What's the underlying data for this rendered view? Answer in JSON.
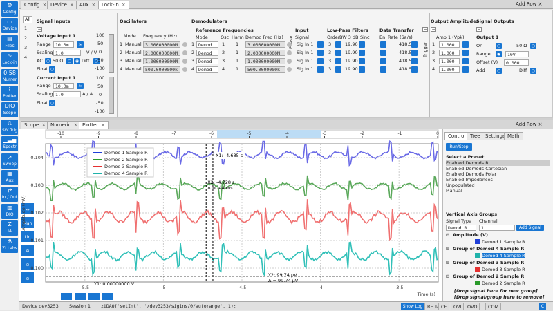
{
  "nav": [
    {
      "label": "Config",
      "icon": "⚙"
    },
    {
      "label": "Device",
      "icon": "▭"
    },
    {
      "label": "Files",
      "icon": "▤"
    },
    {
      "label": "Lock-in",
      "icon": "∿"
    },
    {
      "label": "Numer",
      "icon": "0.58"
    },
    {
      "label": "Plotter",
      "icon": "⌇"
    },
    {
      "label": "Scope",
      "icon": "DIO"
    },
    {
      "label": "SW Trig",
      "icon": "⎍"
    },
    {
      "label": "Spectr",
      "icon": "▁▃▅"
    },
    {
      "label": "Sweep",
      "icon": "↗"
    },
    {
      "label": "Aux",
      "icon": "▦"
    },
    {
      "label": "In / Out",
      "icon": "⇄"
    },
    {
      "label": "DIO",
      "icon": "▥"
    },
    {
      "label": "IA",
      "icon": "Z"
    },
    {
      "label": "ZI Labs",
      "icon": "⚗"
    }
  ],
  "top_tabs": [
    "Config",
    "Device",
    "Aux",
    "Lock-in"
  ],
  "add_row": "Add Row",
  "side_numbers": [
    "All",
    "1",
    "2",
    "3",
    "4"
  ],
  "signal_inputs": {
    "title": "Signal Inputs",
    "v_title": "Voltage Input 1",
    "range_label": "Range",
    "range_value": "10.0m",
    "scaling_label": "Scaling",
    "scaling_value": "1.0",
    "v_unit": "V / V",
    "ac": "AC",
    "ohm": "50 Ω",
    "diff": "Diff",
    "float": "Float",
    "c_title": "Current Input 1",
    "c_range_value": "10.0m",
    "c_scaling_value": "1.0",
    "a_unit": "A / A",
    "bar1": [
      "100",
      "50",
      "0",
      "-50",
      "-100"
    ],
    "bar2": [
      "100",
      "50",
      "0",
      "-50",
      "-100"
    ]
  },
  "oscillators": {
    "title": "Oscillators",
    "mode_h": "Mode",
    "freq_h": "Frequency (Hz)",
    "rows": [
      [
        "1",
        "Manual",
        "3.000000000M"
      ],
      [
        "2",
        "Manual",
        "2.000000000M"
      ],
      [
        "3",
        "Manual",
        "1.000000000M"
      ],
      [
        "4",
        "Manual",
        "500.0000000k"
      ]
    ]
  },
  "demods": {
    "title": "Demodulators",
    "ref_h": "Reference Frequencies",
    "mode_h": "Mode",
    "osc_h": "Osc",
    "harm_h": "Harm",
    "freq_h": "Demod Freq (Hz)",
    "rows": [
      [
        "1",
        "Demod",
        "1",
        "1",
        "3.000000000M"
      ],
      [
        "2",
        "Demod",
        "2",
        "1",
        "2.000000000M"
      ],
      [
        "3",
        "Demod",
        "3",
        "1",
        "1.000000000M"
      ],
      [
        "4",
        "Demod",
        "4",
        "1",
        "500.0000000k"
      ]
    ],
    "phase": "Phase",
    "input_h": "Input",
    "signal_h": "Signal",
    "input_rows": [
      "Sig In 1",
      "Sig In 1",
      "Sig In 1",
      "Sig In 1"
    ],
    "lp_h": "Low-Pass Filters",
    "order_h": "Order",
    "bw_h": "BW 3 dB",
    "sinc_h": "Sinc",
    "lp_rows": [
      [
        "3",
        "19.90"
      ],
      [
        "3",
        "19.90"
      ],
      [
        "3",
        "19.90"
      ],
      [
        "3",
        "19.90"
      ]
    ],
    "dt_h": "Data Transfer",
    "en_h": "En",
    "rate_h": "Rate (Sa/s)",
    "rates": [
      "418.5",
      "418.5",
      "418.5",
      "418.5"
    ],
    "trigger": "Trigger"
  },
  "out_amp": {
    "title": "Output Amplitudes",
    "amp_h": "Amp 1 (Vpk)",
    "rows": [
      [
        "1",
        "1.000"
      ],
      [
        "2",
        "1.000"
      ],
      [
        "3",
        "1.000"
      ],
      [
        "4",
        "1.000"
      ]
    ]
  },
  "sig_out": {
    "title": "Signal Outputs",
    "out1": "Output 1",
    "on": "On",
    "ohm": "50 Ω",
    "range": "Range",
    "range_v": "10V",
    "offset": "Offset (V)",
    "offset_v": "0.000",
    "add": "Add",
    "diff": "Diff"
  },
  "bottom_tabs": [
    "Scope",
    "Numeric",
    "Plotter"
  ],
  "right_tabs": [
    "Control",
    "Tree",
    "Settings",
    "Math"
  ],
  "run_stop": "Run/Stop",
  "preset_title": "Select a Preset",
  "presets": [
    "Enabled Demods R",
    "Enabled Demods Cartesian",
    "Enabled Demods Polar",
    "Enabled Impedances",
    "Unpopulated",
    "Manual"
  ],
  "vag_title": "Vertical Axis Groups",
  "signal_type": "Signal Type",
  "channel": "Channel",
  "sel_type": "Demod R",
  "sel_chan": "1",
  "add_signal": "Add Signal",
  "groups": [
    {
      "name": "Amplitude (V)",
      "item": "Demod 1 Sample R",
      "color": "#1f3fd8"
    },
    {
      "name": "Group of Demod 4 Sample R",
      "item": "Demod 4 Sample R",
      "color": "#20b2aa"
    },
    {
      "name": "Group of Demod 3 Sample R",
      "item": "Demod 3 Sample R",
      "color": "#e53030"
    },
    {
      "name": "Group of Demod 2 Sample R",
      "item": "Demod 2 Sample R",
      "color": "#2a9a2a"
    }
  ],
  "drop1": "[Drop signal here for new group]",
  "drop2": "[Drop signal/group here to remove]",
  "status": {
    "device": "Device dev3253",
    "session": "Session 1",
    "cmd": "ziDAQ('setInt', '/dev3253/sigins/0/autorange', 1);",
    "showlog": "Show Log",
    "inds": [
      "REC",
      "IA",
      "CF",
      "OVI",
      "OVO",
      "COM"
    ],
    "c": "C"
  },
  "chart_data": {
    "type": "line",
    "ylabel": "Amplitude (mV)",
    "xlabel": "Time (s)",
    "x_top_ticks": [
      "-10",
      "-9",
      "-8",
      "-7",
      "-6",
      "-5",
      "-4",
      "-3",
      "-2",
      "-1",
      "0"
    ],
    "x_bottom_ticks": [
      "-5.5",
      "-5",
      "-4.5",
      "-4",
      "-3.5"
    ],
    "y_ticks": [
      "0.104",
      "0.103",
      "0.102",
      "0.101",
      "0.100"
    ],
    "xlim": [
      -5.75,
      -3.25
    ],
    "ylim": [
      0.0995,
      0.1045
    ],
    "series": [
      {
        "name": "Demod 1 Sample R",
        "color": "#6a6ae6",
        "base": 0.1041,
        "amp": 0.0003
      },
      {
        "name": "Demod 2 Sample R",
        "color": "#5aa85a",
        "base": 0.10296,
        "amp": 0.0003
      },
      {
        "name": "Demod 3 Sample R",
        "color": "#f07070",
        "base": 0.10185,
        "amp": 0.0005
      },
      {
        "name": "Demod 4 Sample R",
        "color": "#30c0b8",
        "base": 0.10045,
        "amp": 0.0004
      }
    ],
    "cursors": {
      "x1": "X1: -4.685 s",
      "x2": "X2: -4.728 s",
      "dx": "Δ = -44 ms",
      "y1": "Y1: 0.00000000 V",
      "y2": "Y2: 99.74 μV",
      "dy": "Δ = 99.74 μV"
    }
  }
}
